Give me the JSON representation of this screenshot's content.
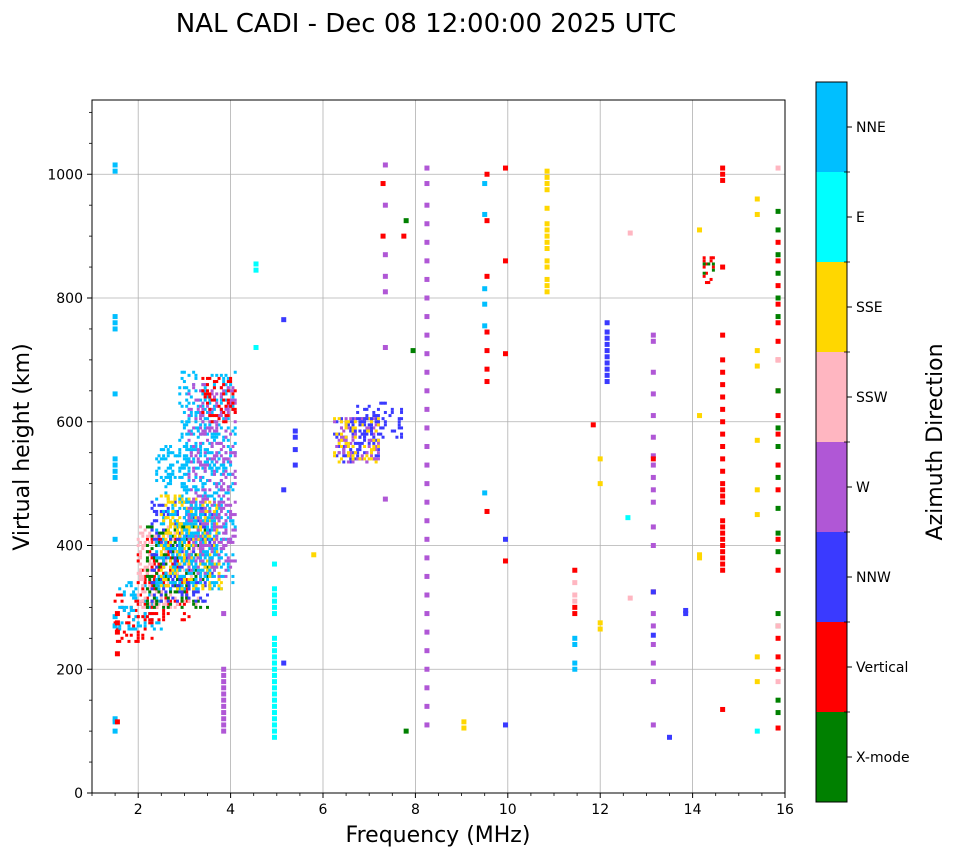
{
  "chart_data": {
    "type": "scatter",
    "title": "NAL CADI - Dec 08 12:00:00 2025 UTC",
    "xlabel": "Frequency (MHz)",
    "ylabel": "Virtual height (km)",
    "xlim": [
      1,
      16
    ],
    "ylim": [
      0,
      1120
    ],
    "xticks": [
      2,
      4,
      6,
      8,
      10,
      12,
      14,
      16
    ],
    "yticks": [
      0,
      200,
      400,
      600,
      800,
      1000
    ],
    "grid": true,
    "colorbar": {
      "label": "Azimuth Direction",
      "categories": [
        {
          "name": "X-mode",
          "color": "#008000"
        },
        {
          "name": "Vertical",
          "color": "#ff0000"
        },
        {
          "name": "NNW",
          "color": "#3a3aff"
        },
        {
          "name": "W",
          "color": "#b057d6"
        },
        {
          "name": "SSW",
          "color": "#ffb6c1"
        },
        {
          "name": "SSE",
          "color": "#ffd700"
        },
        {
          "name": "E",
          "color": "#00ffff"
        },
        {
          "name": "NNE",
          "color": "#00bfff"
        }
      ]
    },
    "echo_columns": [
      {
        "f": 1.5,
        "c": "NNE",
        "h": [
          100,
          115,
          120,
          270,
          285,
          410,
          510,
          520,
          530,
          540,
          645,
          750,
          760,
          770,
          1005,
          1015
        ]
      },
      {
        "f": 1.55,
        "c": "Vertical",
        "h": [
          115,
          225,
          260,
          275,
          290
        ]
      },
      {
        "f": 3.85,
        "c": "W",
        "h": [
          100,
          110,
          120,
          130,
          140,
          150,
          160,
          170,
          180,
          190,
          200,
          290
        ]
      },
      {
        "f": 4.55,
        "c": "E",
        "h": [
          720,
          845,
          855
        ]
      },
      {
        "f": 4.95,
        "c": "E",
        "h": [
          90,
          100,
          110,
          120,
          130,
          140,
          150,
          160,
          170,
          180,
          190,
          200,
          210,
          220,
          230,
          240,
          250,
          290,
          300,
          310,
          320,
          330,
          370
        ]
      },
      {
        "f": 5.15,
        "c": "NNW",
        "h": [
          210,
          490,
          765
        ]
      },
      {
        "f": 5.4,
        "c": "NNW",
        "h": [
          530,
          555,
          575,
          585
        ]
      },
      {
        "f": 5.8,
        "c": "SSE",
        "h": [
          385
        ]
      },
      {
        "f": 7.3,
        "c": "Vertical",
        "h": [
          900,
          985
        ]
      },
      {
        "f": 7.35,
        "c": "W",
        "h": [
          475,
          720,
          810,
          835,
          870,
          950,
          1015
        ]
      },
      {
        "f": 7.75,
        "c": "Vertical",
        "h": [
          900
        ]
      },
      {
        "f": 7.8,
        "c": "X-mode",
        "h": [
          100,
          925
        ]
      },
      {
        "f": 7.95,
        "c": "X-mode",
        "h": [
          715
        ]
      },
      {
        "f": 8.25,
        "c": "W",
        "h": [
          110,
          140,
          170,
          200,
          230,
          260,
          290,
          320,
          350,
          380,
          410,
          440,
          470,
          500,
          530,
          560,
          590,
          620,
          650,
          680,
          710,
          740,
          770,
          800,
          830,
          860,
          890,
          920,
          950,
          985,
          1010
        ]
      },
      {
        "f": 9.05,
        "c": "SSE",
        "h": [
          105,
          115
        ]
      },
      {
        "f": 9.55,
        "c": "Vertical",
        "h": [
          455,
          665,
          685,
          715,
          745,
          835,
          925,
          1000
        ]
      },
      {
        "f": 9.5,
        "c": "NNE",
        "h": [
          485,
          755,
          790,
          815,
          935,
          985
        ]
      },
      {
        "f": 9.95,
        "c": "NNW",
        "h": [
          110,
          410
        ]
      },
      {
        "f": 9.95,
        "c": "Vertical",
        "h": [
          375,
          710,
          860,
          1010
        ]
      },
      {
        "f": 10.85,
        "c": "SSE",
        "h": [
          810,
          820,
          830,
          850,
          860,
          880,
          890,
          900,
          910,
          920,
          945,
          975,
          985,
          995,
          1005
        ]
      },
      {
        "f": 11.45,
        "c": "Vertical",
        "h": [
          290,
          300,
          360
        ]
      },
      {
        "f": 11.45,
        "c": "SSW",
        "h": [
          310,
          320,
          340
        ]
      },
      {
        "f": 11.45,
        "c": "NNE",
        "h": [
          200,
          210,
          240,
          250
        ]
      },
      {
        "f": 11.85,
        "c": "Vertical",
        "h": [
          595
        ]
      },
      {
        "f": 12.0,
        "c": "SSE",
        "h": [
          265,
          275,
          500,
          540
        ]
      },
      {
        "f": 12.15,
        "c": "NNW",
        "h": [
          665,
          675,
          685,
          695,
          705,
          715,
          725,
          735,
          745,
          760
        ]
      },
      {
        "f": 12.6,
        "c": "E",
        "h": [
          445
        ]
      },
      {
        "f": 12.65,
        "c": "SSW",
        "h": [
          315,
          905
        ]
      },
      {
        "f": 13.15,
        "c": "W",
        "h": [
          110,
          180,
          210,
          240,
          270,
          290,
          400,
          430,
          470,
          490,
          510,
          530,
          545,
          575,
          610,
          645,
          680,
          730,
          740
        ]
      },
      {
        "f": 13.15,
        "c": "Vertical",
        "h": [
          325,
          540
        ]
      },
      {
        "f": 13.15,
        "c": "NNW",
        "h": [
          255,
          325
        ]
      },
      {
        "f": 13.5,
        "c": "NNW",
        "h": [
          90
        ]
      },
      {
        "f": 13.85,
        "c": "NNW",
        "h": [
          290,
          295
        ]
      },
      {
        "f": 14.15,
        "c": "SSE",
        "h": [
          380,
          385,
          610,
          910
        ]
      },
      {
        "f": 14.65,
        "c": "Vertical",
        "h": [
          135,
          360,
          370,
          380,
          390,
          400,
          410,
          420,
          430,
          440,
          470,
          480,
          490,
          500,
          520,
          540,
          560,
          580,
          600,
          620,
          640,
          660,
          680,
          700,
          740,
          850,
          990,
          1000,
          1010
        ]
      },
      {
        "f": 15.4,
        "c": "SSE",
        "h": [
          180,
          220,
          450,
          490,
          570,
          690,
          715,
          935,
          960
        ]
      },
      {
        "f": 15.4,
        "c": "E",
        "h": [
          100
        ]
      },
      {
        "f": 15.85,
        "c": "Vertical",
        "h": [
          105,
          200,
          220,
          250,
          360,
          410,
          490,
          530,
          580,
          610,
          650,
          700,
          730,
          760,
          790,
          820,
          860,
          890
        ]
      },
      {
        "f": 15.85,
        "c": "X-mode",
        "h": [
          130,
          150,
          270,
          290,
          390,
          420,
          460,
          510,
          560,
          590,
          650,
          770,
          800,
          840,
          870,
          910,
          940
        ]
      },
      {
        "f": 15.85,
        "c": "SSW",
        "h": [
          180,
          270,
          700,
          1010
        ]
      }
    ],
    "echo_blocks": [
      {
        "f0": 1.5,
        "f1": 2.3,
        "h0": 245,
        "h1": 320,
        "c": "Vertical"
      },
      {
        "f0": 1.6,
        "f1": 2.5,
        "h0": 265,
        "h1": 340,
        "c": "NNE"
      },
      {
        "f0": 2.0,
        "f1": 3.1,
        "h0": 280,
        "h1": 410,
        "c": "Vertical"
      },
      {
        "f0": 2.0,
        "f1": 3.3,
        "h0": 300,
        "h1": 430,
        "c": "SSW"
      },
      {
        "f0": 2.2,
        "f1": 3.5,
        "h0": 300,
        "h1": 430,
        "c": "X-mode"
      },
      {
        "f0": 2.3,
        "f1": 3.6,
        "h0": 310,
        "h1": 470,
        "c": "NNW"
      },
      {
        "f0": 2.4,
        "f1": 3.8,
        "h0": 330,
        "h1": 560,
        "c": "NNE"
      },
      {
        "f0": 2.5,
        "f1": 3.8,
        "h0": 330,
        "h1": 480,
        "c": "SSE"
      },
      {
        "f0": 2.9,
        "f1": 4.1,
        "h0": 340,
        "h1": 680,
        "c": "NNE"
      },
      {
        "f0": 3.1,
        "f1": 4.1,
        "h0": 345,
        "h1": 660,
        "c": "W"
      },
      {
        "f0": 3.4,
        "f1": 4.1,
        "h0": 600,
        "h1": 670,
        "c": "Vertical"
      },
      {
        "f0": 6.25,
        "f1": 7.2,
        "h0": 535,
        "h1": 605,
        "c": "NNW"
      },
      {
        "f0": 6.25,
        "f1": 7.2,
        "h0": 535,
        "h1": 605,
        "c": "W"
      },
      {
        "f0": 6.25,
        "f1": 7.2,
        "h0": 535,
        "h1": 605,
        "c": "SSE"
      },
      {
        "f0": 6.7,
        "f1": 7.7,
        "h0": 575,
        "h1": 630,
        "c": "NNW"
      },
      {
        "f0": 14.25,
        "f1": 14.5,
        "h0": 825,
        "h1": 865,
        "c": "Vertical"
      },
      {
        "f0": 14.25,
        "f1": 14.5,
        "h0": 840,
        "h1": 865,
        "c": "X-mode"
      }
    ]
  }
}
